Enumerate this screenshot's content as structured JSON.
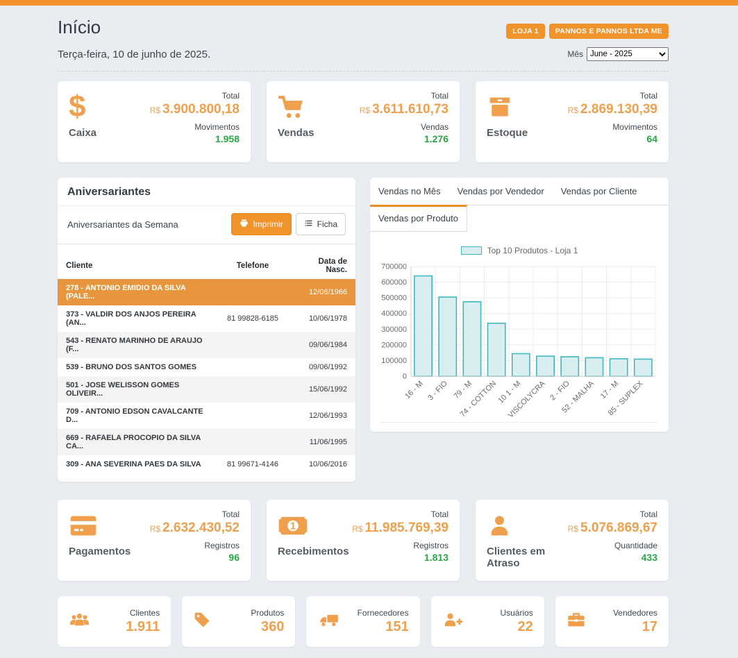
{
  "header": {
    "title": "Início",
    "badges": [
      {
        "label": "LOJA 1"
      },
      {
        "label": "PANNOS E PANNOS LTDA ME"
      }
    ],
    "date_text": "Terça-feira, 10 de junho de 2025.",
    "month_label": "Mês",
    "month_selected": "June - 2025"
  },
  "stat_cards_top": [
    {
      "icon": "dollar-icon",
      "label": "Caixa",
      "total_label": "Total",
      "currency": "R$",
      "total_value": "3.900.800,18",
      "count_label": "Movimentos",
      "count_value": "1.958"
    },
    {
      "icon": "shopping-cart-icon",
      "label": "Vendas",
      "total_label": "Total",
      "currency": "R$",
      "total_value": "3.611.610,73",
      "count_label": "Vendas",
      "count_value": "1.276"
    },
    {
      "icon": "box-icon",
      "label": "Estoque",
      "total_label": "Total",
      "currency": "R$",
      "total_value": "2.869.130,39",
      "count_label": "Movimentos",
      "count_value": "64"
    }
  ],
  "birthdays": {
    "title": "Aniversariantes",
    "subtitle": "Aniversariantes da Semana",
    "print_button": "Imprimir",
    "ficha_button": "Ficha",
    "columns": [
      "Cliente",
      "Telefone",
      "Data de Nasc."
    ],
    "rows": [
      {
        "client": "278 - ANTONIO EMIDIO DA SILVA (PALE...",
        "phone": "",
        "birthdate": "12/06/1966",
        "highlighted": true
      },
      {
        "client": "373 - VALDIR DOS ANJOS PEREIRA (AN...",
        "phone": "81 99828-6185",
        "birthdate": "10/06/1978",
        "highlighted": false
      },
      {
        "client": "543 - RENATO MARINHO DE ARAUJO (F...",
        "phone": "",
        "birthdate": "09/06/1984",
        "highlighted": false
      },
      {
        "client": "539 - BRUNO DOS SANTOS GOMES",
        "phone": "",
        "birthdate": "09/06/1992",
        "highlighted": false
      },
      {
        "client": "501 - JOSE WELISSON GOMES OLIVEIR...",
        "phone": "",
        "birthdate": "15/06/1992",
        "highlighted": false
      },
      {
        "client": "709 - ANTONIO EDSON CAVALCANTE D...",
        "phone": "",
        "birthdate": "12/06/1993",
        "highlighted": false
      },
      {
        "client": "669 - RAFAELA PROCOPIO DA SILVA CA...",
        "phone": "",
        "birthdate": "11/06/1995",
        "highlighted": false
      },
      {
        "client": "309 - ANA SEVERINA PAES DA SILVA",
        "phone": "81 99671-4146",
        "birthdate": "10/06/2016",
        "highlighted": false
      }
    ]
  },
  "sales_panel": {
    "tabs": [
      "Vendas no Mês",
      "Vendas por Vendedor",
      "Vendas por Cliente",
      "Vendas por Produto"
    ],
    "active_tab": "Vendas por Produto"
  },
  "chart_data": {
    "type": "bar",
    "title": "Top 10 Produtos - Loja 1",
    "categories": [
      "16 - M",
      "3 - FIO",
      "79 - M",
      "74 - COTTON",
      "10 1 - M",
      "6 - VISCOLYCRA",
      "2 - FIO",
      "52 - MALHA",
      "17 - M",
      "85 - SUPLEX"
    ],
    "values": [
      640000,
      505000,
      475000,
      338000,
      144000,
      128000,
      124000,
      118000,
      111000,
      109000
    ],
    "xlabel": "",
    "ylabel": "",
    "ylim": [
      0,
      700000
    ],
    "ytick_step": 100000,
    "grid": true,
    "legend_position": "top",
    "bar_fill": "#d9eef0",
    "bar_border": "#41b7c0"
  },
  "stat_cards_bottom": [
    {
      "icon": "credit-card-icon",
      "label": "Pagamentos",
      "total_label": "Total",
      "currency": "R$",
      "total_value": "2.632.430,52",
      "count_label": "Registros",
      "count_value": "96"
    },
    {
      "icon": "money-bill-icon",
      "label": "Recebimentos",
      "total_label": "Total",
      "currency": "R$",
      "total_value": "11.985.769,39",
      "count_label": "Registros",
      "count_value": "1.813"
    },
    {
      "icon": "person-icon",
      "label": "Clientes em Atraso",
      "total_label": "Total",
      "currency": "R$",
      "total_value": "5.076.869,67",
      "count_label": "Quantidade",
      "count_value": "433"
    }
  ],
  "summary_cards": [
    {
      "icon": "users-icon",
      "label": "Clientes",
      "value": "1.911"
    },
    {
      "icon": "tag-icon",
      "label": "Produtos",
      "value": "360"
    },
    {
      "icon": "truck-icon",
      "label": "Fornecedores",
      "value": "151"
    },
    {
      "icon": "user-plus-icon",
      "label": "Usuários",
      "value": "22"
    },
    {
      "icon": "briefcase-icon",
      "label": "Vendedores",
      "value": "17"
    }
  ],
  "colors": {
    "accent": "#f0932a",
    "accent_light": "#f0a04c",
    "positive": "#28a745",
    "highlight_row": "#e8963e",
    "background": "#e9edf1",
    "bar_fill": "#d9eef0",
    "bar_border": "#41b7c0"
  }
}
